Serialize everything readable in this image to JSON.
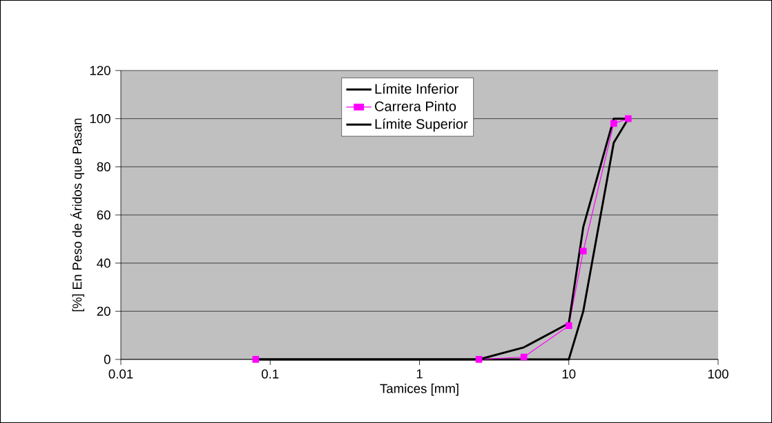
{
  "chart_data": {
    "type": "line",
    "xlabel": "Tamices [mm]",
    "ylabel": "[%] En Peso de Áridos que Pasan",
    "x": [
      0.08,
      2.5,
      5,
      10,
      12.5,
      20,
      25
    ],
    "series": [
      {
        "name": "Límite Inferior",
        "color": "#000000",
        "marker": "none",
        "values": [
          0,
          0,
          0,
          0,
          20,
          90,
          100
        ]
      },
      {
        "name": "Carrera Pinto",
        "color": "#ff00ff",
        "marker": "square",
        "values": [
          0,
          0,
          1,
          14,
          45,
          98,
          100
        ]
      },
      {
        "name": "Límite Superior",
        "color": "#000000",
        "marker": "none",
        "values": [
          0,
          0,
          5,
          15,
          55,
          100,
          100
        ]
      }
    ],
    "log": "x",
    "xlim": [
      0.01,
      100
    ],
    "xticks": [
      0.01,
      0.1,
      1,
      10,
      100
    ],
    "ylim": [
      0,
      120
    ],
    "yticks": [
      0,
      20,
      40,
      60,
      80,
      100,
      120
    ],
    "grid": "y",
    "legend": "top"
  }
}
